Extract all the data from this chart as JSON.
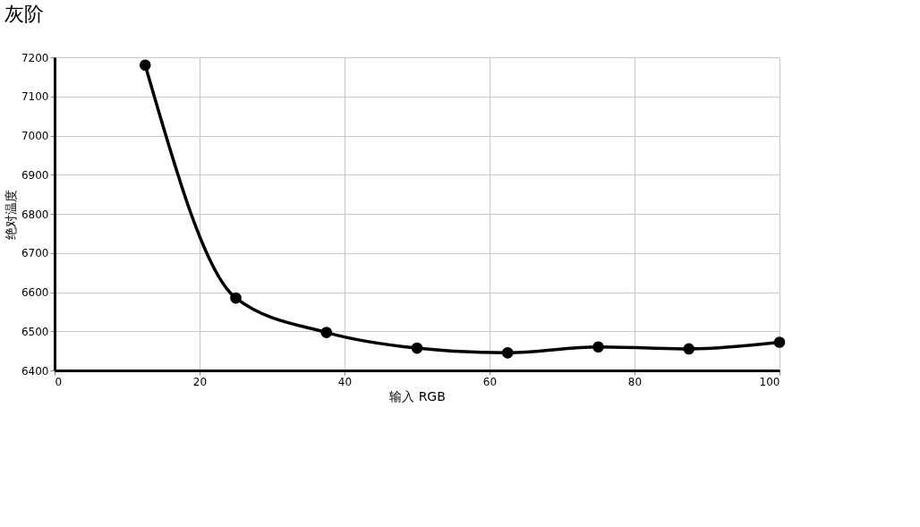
{
  "chart_data": {
    "type": "line",
    "title": "灰阶",
    "xlabel": "输入 RGB",
    "ylabel": "绝对温度",
    "x": [
      12.5,
      25,
      37.5,
      50,
      62.5,
      75,
      87.5,
      100
    ],
    "series": [
      {
        "color": "#000000",
        "values": [
          7180,
          6585,
          6497,
          6457,
          6445,
          6460,
          6455,
          6472
        ]
      }
    ],
    "xlim": [
      0,
      100
    ],
    "xticks": [
      0,
      20,
      40,
      60,
      80,
      100
    ],
    "ylim": [
      6400,
      7200
    ],
    "yticks": [
      6400,
      6500,
      6600,
      6700,
      6800,
      6900,
      7000,
      7100,
      7200
    ],
    "grid": true,
    "marker": "circle",
    "line_style": "solid"
  }
}
